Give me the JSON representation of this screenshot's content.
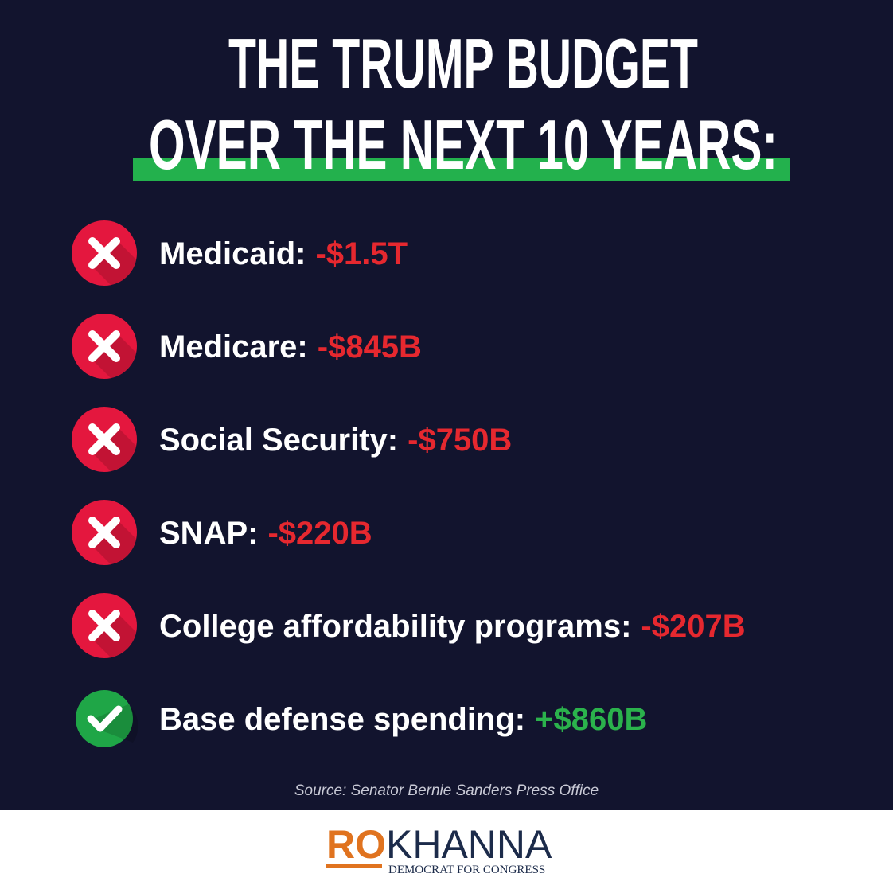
{
  "title": {
    "line1": "THE TRUMP BUDGET",
    "line2": "OVER THE NEXT 10 YEARS:"
  },
  "items": [
    {
      "label": "Medicaid:",
      "amount": "-$1.5T",
      "status": "cut"
    },
    {
      "label": "Medicare:",
      "amount": "-$845B",
      "status": "cut"
    },
    {
      "label": "Social Security:",
      "amount": "-$750B",
      "status": "cut"
    },
    {
      "label": "SNAP:",
      "amount": "-$220B",
      "status": "cut"
    },
    {
      "label": "College affordability programs:",
      "amount": "-$207B",
      "status": "cut"
    },
    {
      "label": "Base defense spending:",
      "amount": "+$860B",
      "status": "increase"
    }
  ],
  "source": "Source: Senator Bernie Sanders Press Office",
  "logo": {
    "first": "RO",
    "last": "KHANNA",
    "tagline": "DEMOCRAT FOR CONGRESS"
  }
}
